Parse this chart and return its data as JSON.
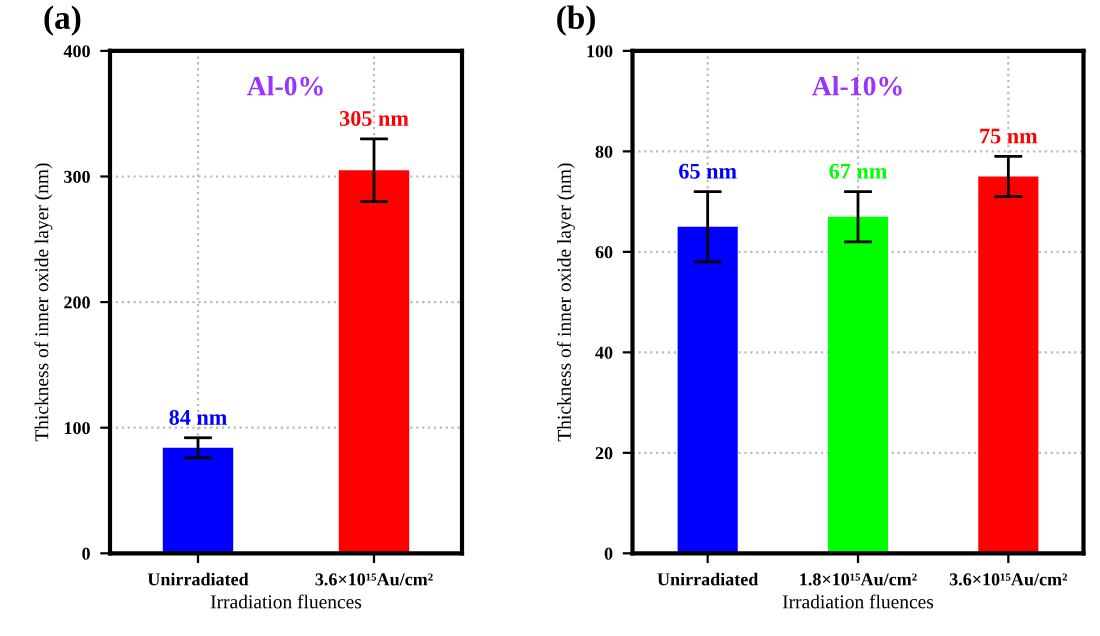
{
  "chart_data": [
    {
      "type": "bar",
      "title": "Al-0%",
      "xlabel": "Irradiation fluences",
      "ylabel": "Thickness of inner oxide layer (nm)",
      "annotations": [
        "(a)"
      ],
      "categories": [
        "Unirradiated",
        "3.6×10¹⁵Au/cm²"
      ],
      "values": [
        84,
        305
      ],
      "colors": [
        "#0000ff",
        "#ff0000"
      ],
      "errors": [
        8,
        25
      ],
      "value_labels": [
        "84 nm",
        "305 nm"
      ],
      "ylim": [
        0,
        400
      ],
      "yticks": [
        0,
        100,
        200,
        300,
        400
      ],
      "grid": true
    },
    {
      "type": "bar",
      "title": "Al-10%",
      "xlabel": "Irradiation fluences",
      "ylabel": "Thickness of inner oxide layer (nm)",
      "annotations": [
        "(b)"
      ],
      "categories": [
        "Unirradiated",
        "1.8×10¹⁵Au/cm²",
        "3.6×10¹⁵Au/cm²"
      ],
      "values": [
        65,
        67,
        75
      ],
      "colors": [
        "#0000ff",
        "#00ff00",
        "#ff0000"
      ],
      "errors": [
        7,
        5,
        4
      ],
      "value_labels": [
        "65 nm",
        "67 nm",
        "75 nm"
      ],
      "ylim": [
        0,
        100
      ],
      "yticks": [
        0,
        20,
        40,
        60,
        80,
        100
      ],
      "grid": true
    }
  ]
}
